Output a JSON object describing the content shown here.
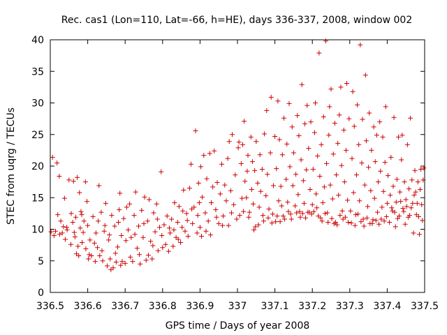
{
  "chart_data": {
    "type": "scatter",
    "title": "Rec. cas1 (Lon=110, Lat=-66, h=HE), days 336-337, 2008, window 002",
    "xlabel": "GPS time / Days of year 2008",
    "ylabel": "STEC from uqrg / TECUs",
    "xlim": [
      336.5,
      337.5
    ],
    "ylim": [
      0,
      40
    ],
    "x_ticks": [
      "336.5",
      "336.6",
      "336.7",
      "336.8",
      "336.9",
      "337",
      "337.1",
      "337.2",
      "337.3",
      "337.4",
      "337.5"
    ],
    "y_ticks": [
      "0",
      "5",
      "10",
      "15",
      "20",
      "25",
      "30",
      "35",
      "40"
    ],
    "grid": false,
    "marker": "plus",
    "color": "#cc0000",
    "points": [
      [
        336.502,
        9.6
      ],
      [
        336.506,
        21.4
      ],
      [
        336.51,
        9.0
      ],
      [
        336.514,
        9.7
      ],
      [
        336.518,
        20.5
      ],
      [
        336.52,
        12.3
      ],
      [
        336.524,
        18.4
      ],
      [
        336.528,
        11.3
      ],
      [
        336.532,
        9.4
      ],
      [
        336.538,
        14.9
      ],
      [
        336.54,
        8.4
      ],
      [
        336.544,
        10.3
      ],
      [
        336.55,
        17.8
      ],
      [
        336.556,
        12.5
      ],
      [
        336.562,
        17.6
      ],
      [
        336.564,
        9.5
      ],
      [
        336.568,
        11.9
      ],
      [
        336.572,
        18.2
      ],
      [
        336.574,
        7.3
      ],
      [
        336.578,
        15.8
      ],
      [
        336.582,
        12.8
      ],
      [
        336.525,
        9.2
      ],
      [
        336.535,
        10.4
      ],
      [
        336.545,
        9.9
      ],
      [
        336.555,
        7.6
      ],
      [
        336.56,
        11.1
      ],
      [
        336.566,
        8.8
      ],
      [
        336.57,
        6.1
      ],
      [
        336.576,
        5.8
      ],
      [
        336.58,
        10.2
      ],
      [
        336.585,
        7.9
      ],
      [
        336.59,
        11.3
      ],
      [
        336.595,
        6.9
      ],
      [
        336.598,
        14.4
      ],
      [
        336.584,
        12.3
      ],
      [
        336.588,
        9.5
      ],
      [
        336.594,
        17.5
      ],
      [
        336.6,
        10.6
      ],
      [
        336.602,
        5.3
      ],
      [
        336.606,
        8.3
      ],
      [
        336.61,
        5.8
      ],
      [
        336.614,
        12.0
      ],
      [
        336.62,
        4.9
      ],
      [
        336.622,
        9.4
      ],
      [
        336.626,
        7.1
      ],
      [
        336.63,
        16.9
      ],
      [
        336.632,
        5.8
      ],
      [
        336.636,
        12.7
      ],
      [
        336.64,
        5.0
      ],
      [
        336.644,
        9.7
      ],
      [
        336.648,
        14.1
      ],
      [
        336.652,
        4.2
      ],
      [
        336.656,
        8.3
      ],
      [
        336.66,
        5.3
      ],
      [
        336.664,
        12.2
      ],
      [
        336.668,
        3.9
      ],
      [
        336.672,
        10.5
      ],
      [
        336.676,
        4.8
      ],
      [
        336.68,
        7.2
      ],
      [
        336.684,
        13.1
      ],
      [
        336.688,
        4.3
      ],
      [
        336.69,
        9.0
      ],
      [
        336.604,
        6.0
      ],
      [
        336.618,
        7.8
      ],
      [
        336.628,
        11.3
      ],
      [
        336.638,
        6.6
      ],
      [
        336.646,
        10.6
      ],
      [
        336.658,
        9.1
      ],
      [
        336.662,
        3.6
      ],
      [
        336.674,
        6.2
      ],
      [
        336.682,
        11.1
      ],
      [
        336.686,
        15.7
      ],
      [
        336.692,
        4.9
      ],
      [
        336.696,
        11.7
      ],
      [
        336.7,
        4.6
      ],
      [
        336.704,
        13.5
      ],
      [
        336.708,
        9.9
      ],
      [
        336.712,
        14.0
      ],
      [
        336.716,
        8.7
      ],
      [
        336.72,
        4.9
      ],
      [
        336.724,
        12.2
      ],
      [
        336.728,
        15.9
      ],
      [
        336.732,
        7.0
      ],
      [
        336.736,
        10.5
      ],
      [
        336.74,
        4.5
      ],
      [
        336.744,
        13.0
      ],
      [
        336.748,
        8.7
      ],
      [
        336.752,
        15.1
      ],
      [
        336.756,
        5.1
      ],
      [
        336.76,
        11.3
      ],
      [
        336.764,
        14.7
      ],
      [
        336.768,
        8.1
      ],
      [
        336.772,
        5.3
      ],
      [
        336.776,
        12.6
      ],
      [
        336.78,
        9.6
      ],
      [
        336.784,
        14.0
      ],
      [
        336.788,
        6.6
      ],
      [
        336.792,
        10.3
      ],
      [
        336.796,
        19.1
      ],
      [
        336.8,
        7.1
      ],
      [
        336.702,
        8.2
      ],
      [
        336.714,
        5.6
      ],
      [
        336.726,
        9.2
      ],
      [
        336.738,
        6.0
      ],
      [
        336.75,
        10.9
      ],
      [
        336.762,
        5.9
      ],
      [
        336.774,
        7.4
      ],
      [
        336.786,
        11.6
      ],
      [
        336.798,
        9.0
      ],
      [
        336.804,
        10.7
      ],
      [
        336.808,
        7.6
      ],
      [
        336.812,
        12.1
      ],
      [
        336.816,
        6.5
      ],
      [
        336.82,
        9.4
      ],
      [
        336.824,
        11.6
      ],
      [
        336.828,
        7.3
      ],
      [
        336.832,
        14.2
      ],
      [
        336.836,
        8.7
      ],
      [
        336.84,
        11.1
      ],
      [
        336.844,
        13.6
      ],
      [
        336.848,
        7.9
      ],
      [
        336.852,
        10.3
      ],
      [
        336.856,
        16.2
      ],
      [
        336.86,
        9.7
      ],
      [
        336.864,
        12.5
      ],
      [
        336.868,
        8.9
      ],
      [
        336.872,
        16.5
      ],
      [
        336.876,
        20.3
      ],
      [
        336.88,
        10.9
      ],
      [
        336.884,
        13.5
      ],
      [
        336.888,
        25.6
      ],
      [
        336.892,
        9.4
      ],
      [
        336.896,
        17.3
      ],
      [
        336.9,
        10.3
      ],
      [
        336.818,
        10.2
      ],
      [
        336.83,
        9.9
      ],
      [
        336.842,
        8.4
      ],
      [
        336.854,
        12.9
      ],
      [
        336.866,
        11.4
      ],
      [
        336.878,
        13.2
      ],
      [
        336.894,
        12.2
      ],
      [
        336.898,
        14.2
      ],
      [
        336.902,
        19.9
      ],
      [
        336.906,
        15.1
      ],
      [
        336.91,
        21.7
      ],
      [
        336.914,
        12.6
      ],
      [
        336.918,
        18.0
      ],
      [
        336.922,
        11.3
      ],
      [
        336.926,
        22.0
      ],
      [
        336.93,
        14.2
      ],
      [
        336.934,
        16.7
      ],
      [
        336.938,
        22.4
      ],
      [
        336.942,
        13.1
      ],
      [
        336.946,
        17.4
      ],
      [
        336.95,
        10.9
      ],
      [
        336.954,
        15.6
      ],
      [
        336.958,
        20.3
      ],
      [
        336.962,
        12.1
      ],
      [
        336.966,
        17.0
      ],
      [
        336.97,
        14.5
      ],
      [
        336.974,
        21.2
      ],
      [
        336.978,
        23.9
      ],
      [
        336.982,
        16.1
      ],
      [
        336.986,
        25.0
      ],
      [
        336.99,
        13.9
      ],
      [
        336.994,
        18.6
      ],
      [
        336.998,
        11.6
      ],
      [
        336.904,
        8.9
      ],
      [
        336.916,
        9.7
      ],
      [
        336.928,
        9.1
      ],
      [
        336.944,
        11.9
      ],
      [
        336.96,
        10.6
      ],
      [
        336.976,
        10.6
      ],
      [
        336.984,
        12.6
      ],
      [
        337.004,
        23.8
      ],
      [
        337.006,
        12.2
      ],
      [
        337.01,
        20.4
      ],
      [
        337.012,
        14.9
      ],
      [
        337.014,
        23.4
      ],
      [
        337.018,
        27.1
      ],
      [
        337.02,
        17.6
      ],
      [
        337.024,
        15.0
      ],
      [
        337.026,
        19.2
      ],
      [
        337.028,
        21.7
      ],
      [
        337.032,
        12.7
      ],
      [
        337.036,
        24.6
      ],
      [
        337.038,
        16.3
      ],
      [
        337.04,
        20.7
      ],
      [
        337.042,
        14.0
      ],
      [
        337.046,
        19.3
      ],
      [
        337.048,
        10.4
      ],
      [
        337.05,
        23.9
      ],
      [
        337.054,
        17.3
      ],
      [
        337.058,
        13.5
      ],
      [
        337.06,
        21.8
      ],
      [
        337.062,
        16.0
      ],
      [
        337.066,
        19.5
      ],
      [
        337.07,
        11.3
      ],
      [
        337.072,
        25.1
      ],
      [
        337.076,
        15.3
      ],
      [
        337.078,
        28.8
      ],
      [
        337.08,
        18.7
      ],
      [
        337.084,
        13.2
      ],
      [
        337.088,
        22.1
      ],
      [
        337.09,
        30.9
      ],
      [
        337.094,
        12.4
      ],
      [
        337.096,
        16.9
      ],
      [
        337.1,
        24.7
      ],
      [
        337.002,
        22.9
      ],
      [
        337.016,
        12.8
      ],
      [
        337.03,
        11.9
      ],
      [
        337.044,
        9.9
      ],
      [
        337.056,
        10.7
      ],
      [
        337.068,
        12.2
      ],
      [
        337.082,
        11.8
      ],
      [
        337.092,
        11.0
      ],
      [
        337.102,
        11.2
      ],
      [
        337.104,
        19.6
      ],
      [
        337.108,
        30.3
      ],
      [
        337.11,
        14.5
      ],
      [
        337.112,
        24.2
      ],
      [
        337.116,
        16.8
      ],
      [
        337.118,
        13.7
      ],
      [
        337.12,
        21.8
      ],
      [
        337.124,
        27.6
      ],
      [
        337.126,
        11.6
      ],
      [
        337.13,
        17.9
      ],
      [
        337.132,
        23.5
      ],
      [
        337.134,
        14.3
      ],
      [
        337.138,
        29.9
      ],
      [
        337.14,
        19.9
      ],
      [
        337.142,
        12.4
      ],
      [
        337.146,
        26.2
      ],
      [
        337.148,
        16.9
      ],
      [
        337.15,
        22.1
      ],
      [
        337.154,
        13.7
      ],
      [
        337.156,
        18.7
      ],
      [
        337.16,
        28.0
      ],
      [
        337.162,
        15.5
      ],
      [
        337.164,
        24.8
      ],
      [
        337.168,
        11.9
      ],
      [
        337.17,
        21.0
      ],
      [
        337.172,
        32.9
      ],
      [
        337.176,
        17.7
      ],
      [
        337.178,
        14.1
      ],
      [
        337.18,
        26.7
      ],
      [
        337.184,
        19.4
      ],
      [
        337.186,
        29.6
      ],
      [
        337.188,
        12.7
      ],
      [
        337.19,
        22.8
      ],
      [
        337.194,
        16.3
      ],
      [
        337.196,
        27.0
      ],
      [
        337.2,
        13.9
      ],
      [
        337.106,
        12.1
      ],
      [
        337.114,
        11.2
      ],
      [
        337.122,
        12.1
      ],
      [
        337.136,
        12.8
      ],
      [
        337.144,
        11.6
      ],
      [
        337.158,
        12.6
      ],
      [
        337.166,
        12.8
      ],
      [
        337.174,
        12.5
      ],
      [
        337.182,
        11.8
      ],
      [
        337.192,
        12.7
      ],
      [
        337.198,
        12.4
      ],
      [
        337.202,
        19.5
      ],
      [
        337.206,
        25.3
      ],
      [
        337.208,
        30.0
      ],
      [
        337.21,
        15.6
      ],
      [
        337.212,
        13.4
      ],
      [
        337.214,
        21.6
      ],
      [
        337.218,
        37.9
      ],
      [
        337.22,
        18.4
      ],
      [
        337.222,
        11.8
      ],
      [
        337.224,
        23.4
      ],
      [
        337.228,
        14.2
      ],
      [
        337.23,
        27.8
      ],
      [
        337.232,
        16.7
      ],
      [
        337.236,
        39.8
      ],
      [
        337.238,
        20.4
      ],
      [
        337.24,
        12.6
      ],
      [
        337.244,
        24.9
      ],
      [
        337.246,
        29.4
      ],
      [
        337.248,
        17.0
      ],
      [
        337.25,
        32.2
      ],
      [
        337.254,
        14.8
      ],
      [
        337.256,
        21.9
      ],
      [
        337.26,
        26.8
      ],
      [
        337.262,
        11.1
      ],
      [
        337.264,
        18.6
      ],
      [
        337.268,
        23.6
      ],
      [
        337.27,
        15.4
      ],
      [
        337.272,
        28.1
      ],
      [
        337.276,
        32.5
      ],
      [
        337.278,
        20.1
      ],
      [
        337.28,
        12.9
      ],
      [
        337.284,
        25.7
      ],
      [
        337.286,
        17.5
      ],
      [
        337.29,
        22.5
      ],
      [
        337.292,
        33.1
      ],
      [
        337.294,
        14.6
      ],
      [
        337.298,
        27.5
      ],
      [
        337.204,
        12.8
      ],
      [
        337.216,
        12.1
      ],
      [
        337.226,
        11.3
      ],
      [
        337.234,
        12.5
      ],
      [
        337.242,
        11.1
      ],
      [
        337.252,
        11.7
      ],
      [
        337.258,
        10.9
      ],
      [
        337.266,
        10.7
      ],
      [
        337.274,
        12.2
      ],
      [
        337.282,
        11.6
      ],
      [
        337.288,
        11.9
      ],
      [
        337.296,
        11.1
      ],
      [
        337.302,
        12.9
      ],
      [
        337.306,
        21.2
      ],
      [
        337.308,
        31.8
      ],
      [
        337.31,
        15.8
      ],
      [
        337.312,
        26.3
      ],
      [
        337.316,
        12.3
      ],
      [
        337.318,
        18.6
      ],
      [
        337.32,
        29.7
      ],
      [
        337.324,
        23.4
      ],
      [
        337.326,
        14.5
      ],
      [
        337.328,
        39.2
      ],
      [
        337.332,
        20.5
      ],
      [
        337.334,
        27.4
      ],
      [
        337.336,
        11.6
      ],
      [
        337.34,
        17.0
      ],
      [
        337.342,
        34.4
      ],
      [
        337.344,
        24.0
      ],
      [
        337.348,
        13.6
      ],
      [
        337.35,
        19.8
      ],
      [
        337.352,
        28.4
      ],
      [
        337.356,
        16.1
      ],
      [
        337.358,
        22.5
      ],
      [
        337.36,
        10.9
      ],
      [
        337.364,
        26.2
      ],
      [
        337.366,
        14.9
      ],
      [
        337.368,
        20.7
      ],
      [
        337.372,
        24.9
      ],
      [
        337.374,
        12.7
      ],
      [
        337.376,
        17.5
      ],
      [
        337.38,
        27.0
      ],
      [
        337.382,
        19.2
      ],
      [
        337.386,
        13.5
      ],
      [
        337.388,
        24.6
      ],
      [
        337.39,
        16.0
      ],
      [
        337.394,
        20.6
      ],
      [
        337.396,
        29.4
      ],
      [
        337.4,
        14.1
      ],
      [
        337.304,
        11.0
      ],
      [
        337.314,
        10.6
      ],
      [
        337.322,
        12.4
      ],
      [
        337.33,
        11.2
      ],
      [
        337.338,
        10.5
      ],
      [
        337.346,
        11.8
      ],
      [
        337.354,
        10.9
      ],
      [
        337.362,
        11.5
      ],
      [
        337.37,
        11.4
      ],
      [
        337.378,
        10.8
      ],
      [
        337.384,
        11.6
      ],
      [
        337.392,
        11.3
      ],
      [
        337.398,
        12.0
      ],
      [
        337.402,
        18.5
      ],
      [
        337.406,
        11.1
      ],
      [
        337.408,
        15.4
      ],
      [
        337.41,
        21.4
      ],
      [
        337.414,
        12.9
      ],
      [
        337.416,
        16.8
      ],
      [
        337.418,
        27.7
      ],
      [
        337.422,
        10.4
      ],
      [
        337.424,
        14.3
      ],
      [
        337.426,
        17.9
      ],
      [
        337.43,
        24.6
      ],
      [
        337.432,
        12.1
      ],
      [
        337.434,
        15.9
      ],
      [
        337.438,
        21.0
      ],
      [
        337.44,
        24.9
      ],
      [
        337.442,
        13.3
      ],
      [
        337.446,
        17.5
      ],
      [
        337.448,
        10.8
      ],
      [
        337.45,
        14.7
      ],
      [
        337.454,
        23.4
      ],
      [
        337.456,
        11.9
      ],
      [
        337.458,
        16.4
      ],
      [
        337.462,
        27.6
      ],
      [
        337.464,
        13.4
      ],
      [
        337.466,
        17.8
      ],
      [
        337.47,
        9.4
      ],
      [
        337.472,
        15.4
      ],
      [
        337.474,
        19.3
      ],
      [
        337.478,
        12.3
      ],
      [
        337.48,
        14.1
      ],
      [
        337.482,
        17.5
      ],
      [
        337.486,
        9.2
      ],
      [
        337.488,
        16.3
      ],
      [
        337.49,
        19.5
      ],
      [
        337.494,
        11.4
      ],
      [
        337.496,
        17.8
      ],
      [
        337.498,
        19.7
      ],
      [
        337.412,
        13.4
      ],
      [
        337.42,
        12.7
      ],
      [
        337.428,
        11.7
      ],
      [
        337.436,
        14.4
      ],
      [
        337.444,
        12.8
      ],
      [
        337.452,
        13.6
      ],
      [
        337.46,
        12.2
      ],
      [
        337.468,
        14.1
      ],
      [
        337.476,
        15.9
      ],
      [
        337.484,
        12.0
      ],
      [
        337.492,
        13.9
      ]
    ]
  }
}
